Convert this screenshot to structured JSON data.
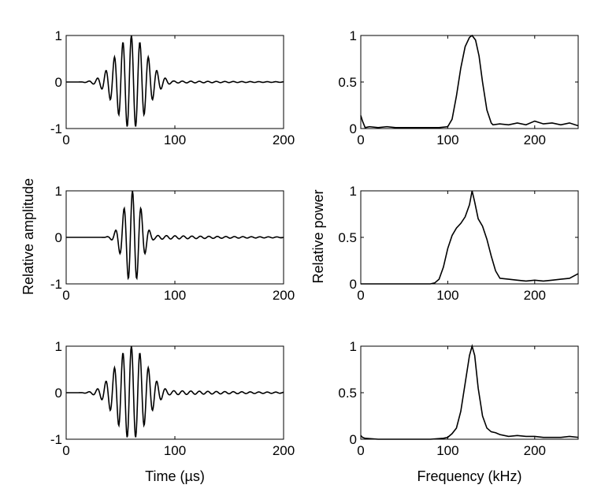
{
  "figure": {
    "ylabel_left": "Relative amplitude",
    "ylabel_right": "Relative power",
    "xlabel_left": "Time (µs)",
    "xlabel_right": "Frequency (kHz)"
  },
  "colors": {
    "line": "#000000",
    "axes": "#000000",
    "background": "#ffffff"
  },
  "chart_data": [
    {
      "type": "line",
      "id": "time-1",
      "xlim": [
        0,
        200
      ],
      "ylim": [
        -1,
        1
      ],
      "xticks": [
        0,
        100,
        200
      ],
      "yticks": [
        -1,
        0,
        1
      ],
      "grid": false,
      "signal": {
        "kind": "burst",
        "center": 60,
        "sigma": 14,
        "freq": 0.128,
        "amplitude": 1.0,
        "tail": 0.03
      }
    },
    {
      "type": "line",
      "id": "time-2",
      "xlim": [
        0,
        200
      ],
      "ylim": [
        -1,
        1
      ],
      "xticks": [
        0,
        100,
        200
      ],
      "yticks": [
        -1,
        0,
        1
      ],
      "grid": false,
      "signal": {
        "kind": "burst",
        "center": 61,
        "sigma": 8,
        "freq": 0.128,
        "amplitude": 1.0,
        "tail": 0.05
      }
    },
    {
      "type": "line",
      "id": "time-3",
      "xlim": [
        0,
        200
      ],
      "ylim": [
        -1,
        1
      ],
      "xticks": [
        0,
        100,
        200
      ],
      "yticks": [
        -1,
        0,
        1
      ],
      "grid": false,
      "signal": {
        "kind": "burst",
        "center": 60,
        "sigma": 14,
        "freq": 0.128,
        "amplitude": 1.0,
        "tail": 0.06
      }
    },
    {
      "type": "line",
      "id": "freq-1",
      "xlim": [
        0,
        250
      ],
      "ylim": [
        0,
        1
      ],
      "xticks": [
        0,
        100,
        200
      ],
      "yticks": [
        0,
        0.5,
        1
      ],
      "grid": false,
      "x": [
        0,
        2,
        5,
        10,
        20,
        30,
        40,
        50,
        60,
        70,
        80,
        90,
        100,
        105,
        110,
        115,
        120,
        125,
        128,
        132,
        136,
        140,
        145,
        150,
        152,
        160,
        170,
        180,
        190,
        200,
        210,
        220,
        230,
        240,
        250
      ],
      "y": [
        0.14,
        0.08,
        0.01,
        0.02,
        0.01,
        0.02,
        0.01,
        0.01,
        0.01,
        0.01,
        0.01,
        0.01,
        0.02,
        0.1,
        0.35,
        0.65,
        0.88,
        0.98,
        1.0,
        0.95,
        0.78,
        0.5,
        0.2,
        0.06,
        0.04,
        0.05,
        0.04,
        0.06,
        0.04,
        0.08,
        0.05,
        0.06,
        0.04,
        0.06,
        0.03
      ]
    },
    {
      "type": "line",
      "id": "freq-2",
      "xlim": [
        0,
        250
      ],
      "ylim": [
        0,
        1
      ],
      "xticks": [
        0,
        100,
        200
      ],
      "yticks": [
        0,
        0.5,
        1
      ],
      "grid": false,
      "x": [
        0,
        20,
        40,
        60,
        80,
        85,
        90,
        95,
        100,
        105,
        110,
        115,
        120,
        125,
        128,
        131,
        135,
        140,
        145,
        150,
        155,
        160,
        170,
        180,
        190,
        200,
        210,
        220,
        230,
        240,
        250
      ],
      "y": [
        0,
        0.0,
        0.0,
        0.0,
        0.0,
        0.01,
        0.05,
        0.18,
        0.38,
        0.52,
        0.6,
        0.65,
        0.72,
        0.85,
        1.0,
        0.88,
        0.7,
        0.62,
        0.48,
        0.3,
        0.14,
        0.06,
        0.05,
        0.04,
        0.03,
        0.04,
        0.03,
        0.04,
        0.05,
        0.06,
        0.11
      ]
    },
    {
      "type": "line",
      "id": "freq-3",
      "xlim": [
        0,
        250
      ],
      "ylim": [
        0,
        1
      ],
      "xticks": [
        0,
        100,
        200
      ],
      "yticks": [
        0,
        0.5,
        1
      ],
      "grid": false,
      "x": [
        0,
        2,
        5,
        20,
        40,
        60,
        80,
        95,
        100,
        105,
        110,
        115,
        120,
        125,
        128,
        131,
        135,
        140,
        145,
        150,
        155,
        160,
        170,
        180,
        190,
        200,
        210,
        220,
        230,
        240,
        250
      ],
      "y": [
        0.04,
        0.02,
        0.01,
        0.0,
        0.0,
        0.0,
        0.0,
        0.01,
        0.02,
        0.06,
        0.12,
        0.3,
        0.6,
        0.9,
        1.0,
        0.9,
        0.55,
        0.25,
        0.12,
        0.08,
        0.07,
        0.05,
        0.03,
        0.04,
        0.03,
        0.03,
        0.02,
        0.02,
        0.02,
        0.03,
        0.02
      ]
    }
  ]
}
